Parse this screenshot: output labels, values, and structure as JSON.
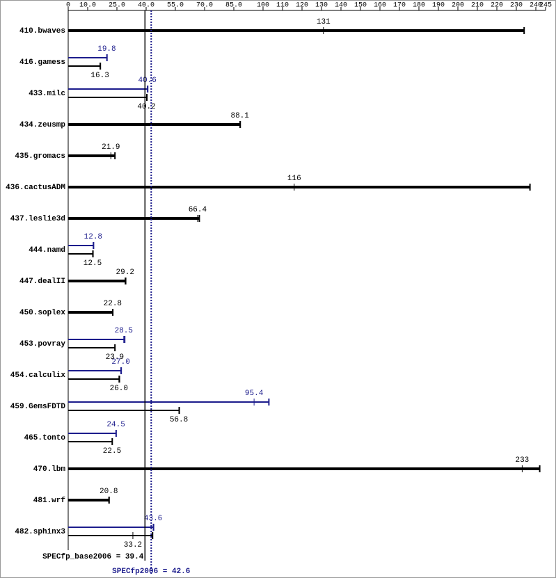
{
  "chart_data": {
    "type": "spec",
    "categories": [
      "410.bwaves",
      "416.gamess",
      "433.milc",
      "434.zeusmp",
      "435.gromacs",
      "436.cactusADM",
      "437.leslie3d",
      "444.namd",
      "447.dealII",
      "450.soplex",
      "453.povray",
      "454.calculix",
      "459.GemsFDTD",
      "465.tonto",
      "470.lbm",
      "481.wrf",
      "482.sphinx3"
    ],
    "series": [
      {
        "color": "#000000",
        "values": [
          131,
          16.3,
          40.2,
          88.1,
          21.9,
          116,
          66.4,
          12.5,
          29.2,
          22.8,
          23.9,
          26.0,
          56.8,
          22.5,
          233,
          20.8,
          33.2
        ],
        "value_labels": [
          "131",
          "16.3",
          "40.2",
          "88.1",
          "21.9",
          "116",
          "66.4",
          "12.5",
          "29.2",
          "22.8",
          "23.9",
          "26.0",
          "56.8",
          "22.5",
          "233",
          "20.8",
          "33.2"
        ],
        "max": [
          234,
          16.5,
          40.4,
          88.3,
          24.0,
          237,
          67.3,
          12.7,
          29.5,
          22.9,
          24.0,
          26.3,
          57.0,
          22.6,
          242,
          21.0,
          43.3
        ]
      },
      {
        "color": "#1c1c8c",
        "values": [
          null,
          19.8,
          40.6,
          null,
          null,
          null,
          null,
          12.8,
          null,
          null,
          28.5,
          27.0,
          95.4,
          24.5,
          null,
          null,
          43.6
        ],
        "value_labels": [
          null,
          "19.8",
          "40.6",
          null,
          null,
          null,
          null,
          "12.8",
          null,
          null,
          "28.5",
          "27.0",
          "95.4",
          "24.5",
          null,
          null,
          "43.6"
        ],
        "max": [
          null,
          19.9,
          40.8,
          null,
          null,
          null,
          null,
          13.0,
          null,
          null,
          29.0,
          27.2,
          103,
          24.6,
          null,
          null,
          43.8
        ]
      }
    ],
    "xlim": [
      0,
      245
    ],
    "xticks": [
      0,
      {
        "value": 10,
        "label": "10.0"
      },
      {
        "value": 25,
        "label": "25.0"
      },
      {
        "value": 40,
        "label": "40.0"
      },
      {
        "value": 55,
        "label": "55.0"
      },
      {
        "value": 70,
        "label": "70.0"
      },
      {
        "value": 85,
        "label": "85.0"
      },
      100,
      110,
      120,
      130,
      140,
      150,
      160,
      170,
      180,
      190,
      200,
      210,
      220,
      230,
      240,
      245
    ],
    "reference_lines": [
      {
        "label": "SPECfp_base2006 = 39.4",
        "value": 39.4,
        "color": "#000000",
        "style": "solid"
      },
      {
        "label": "SPECfp2006 = 42.6",
        "value": 42.6,
        "color": "#1c1c8c",
        "style": "dotted"
      }
    ]
  }
}
